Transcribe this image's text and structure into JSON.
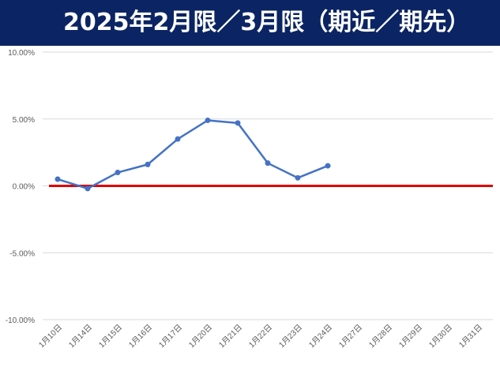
{
  "title": "2025年2月限／3月限（期近／期先）",
  "chart_data": {
    "type": "line",
    "title": "2025年2月限／3月限（期近／期先）",
    "xlabel": "",
    "ylabel": "",
    "categories": [
      "1月10日",
      "1月14日",
      "1月15日",
      "1月16日",
      "1月17日",
      "1月20日",
      "1月21日",
      "1月22日",
      "1月23日",
      "1月24日",
      "1月27日",
      "1月28日",
      "1月29日",
      "1月30日",
      "1月31日"
    ],
    "yticks": [
      "10.00%",
      "5.00%",
      "0.00%",
      "-5.00%",
      "-10.00%"
    ],
    "ylim": [
      -10,
      10
    ],
    "grid": true,
    "series": [
      {
        "values": [
          0.5,
          -0.2,
          1.0,
          1.6,
          3.5,
          4.9,
          4.7,
          1.7,
          0.6,
          1.5,
          null,
          null,
          null,
          null,
          null
        ],
        "color": "#4472c4"
      }
    ],
    "reference_line": {
      "value": 0,
      "color": "#e00000"
    }
  }
}
